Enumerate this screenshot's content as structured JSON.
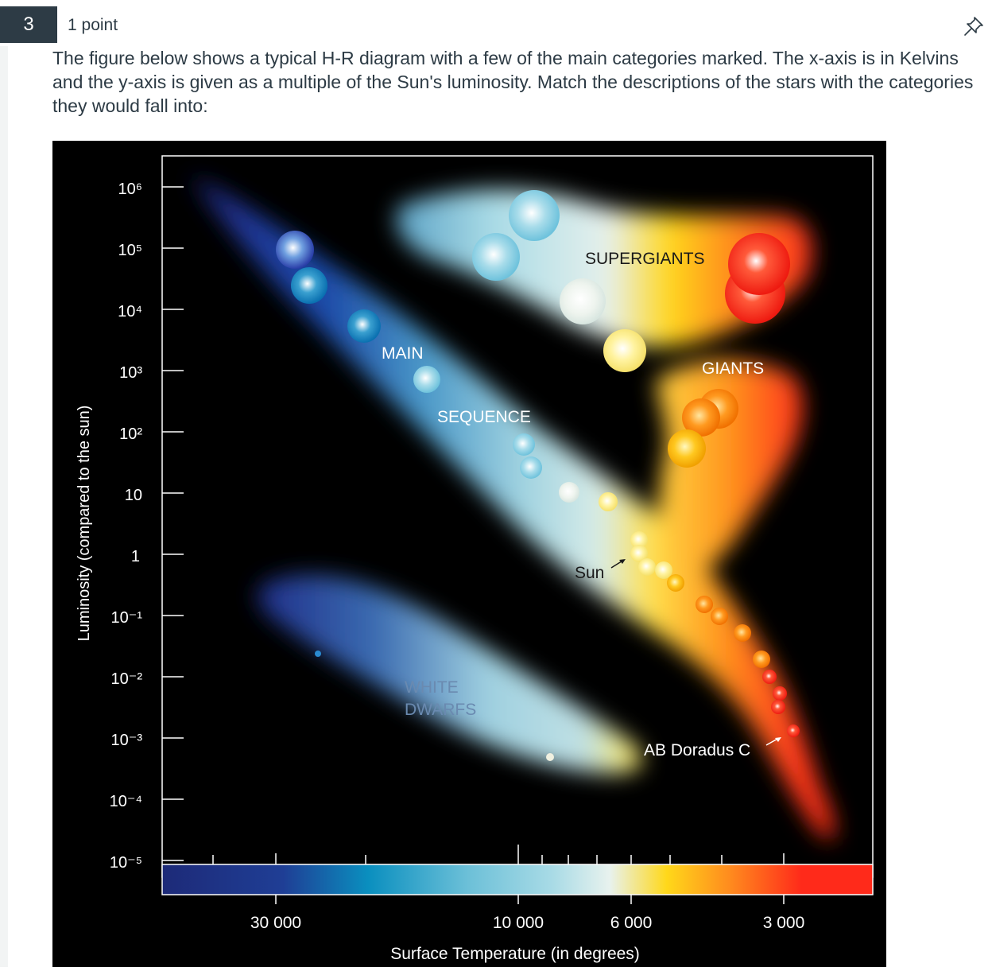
{
  "question": {
    "number": "3",
    "points": "1 point",
    "pin_icon": "pin-icon",
    "text": "The figure below shows a typical H-R diagram with a few of the main categories marked. The x-axis is in Kelvins and the y-axis is given as a multiple of the Sun's luminosity. Match the descriptions of the stars with the categories they would fall into:"
  },
  "chart_data": {
    "type": "scatter",
    "title": "",
    "xlabel": "Surface Temperature (in degrees)",
    "ylabel": "Luminosity (compared to the sun)",
    "x_ticks": [
      "30 000",
      "10 000",
      "6 000",
      "3 000"
    ],
    "y_ticks": [
      "10⁶",
      "10⁵",
      "10⁴",
      "10³",
      "10²",
      "10",
      "1",
      "10⁻¹",
      "10⁻²",
      "10⁻³",
      "10⁻⁴",
      "10⁻⁵"
    ],
    "xlim": [
      40000,
      2500
    ],
    "ylim": [
      "10⁻⁵",
      "10⁶"
    ],
    "x_scale": "log",
    "y_scale": "log",
    "regions": [
      "MAIN SEQUENCE",
      "SUPERGIANTS",
      "GIANTS",
      "WHITE DWARFS"
    ],
    "region_labels": [
      {
        "text": "MAIN",
        "region": "main sequence"
      },
      {
        "text": "SEQUENCE",
        "region": "main sequence"
      },
      {
        "text": "SUPERGIANTS",
        "region": "supergiants"
      },
      {
        "text": "GIANTS",
        "region": "giants"
      },
      {
        "text": "WHITE",
        "region": "white dwarfs"
      },
      {
        "text": "DWARFS",
        "region": "white dwarfs"
      }
    ],
    "annotations": [
      {
        "text": "Sun",
        "x": 5800,
        "y": 1
      },
      {
        "text": "AB Doradus C",
        "x": 3000,
        "y": 0.002
      }
    ],
    "colorbar_colors": [
      "#1d2a78",
      "#0a8fbf",
      "#a8dbe8",
      "#e8f2ee",
      "#ffd81a",
      "#ff8a1e",
      "#ff2a1a"
    ]
  }
}
